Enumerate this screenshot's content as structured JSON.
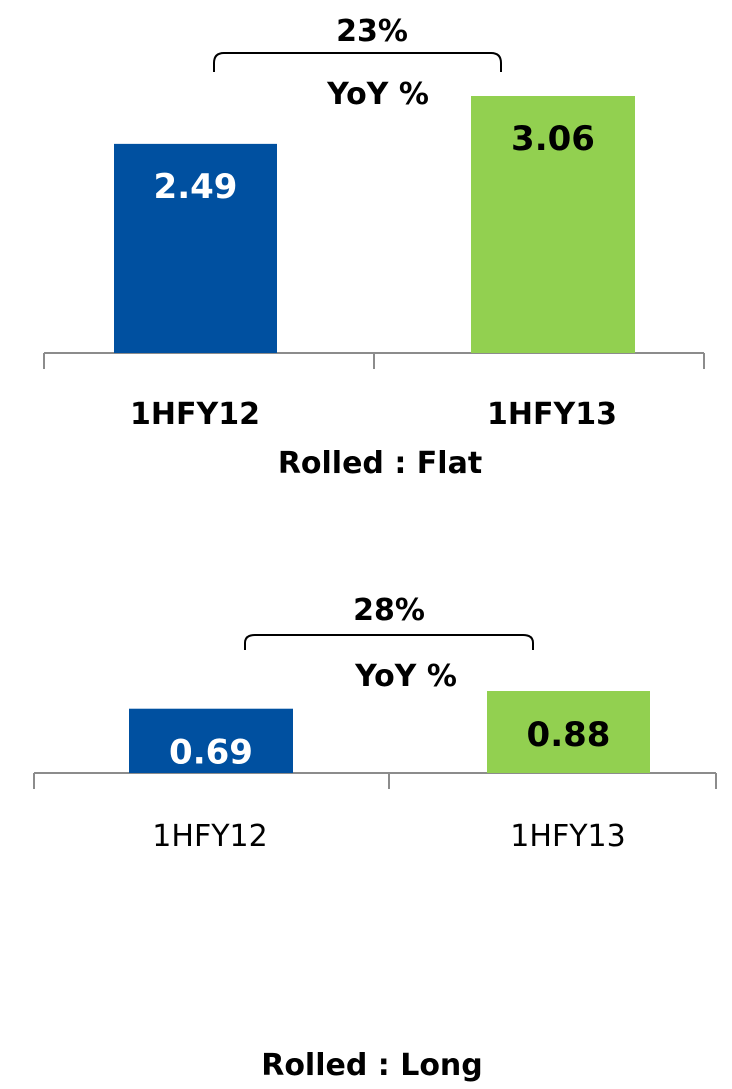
{
  "colors": {
    "series_1hfy12": "#0050a0",
    "series_1hfy13": "#92d050",
    "axis": "#8c8c8c"
  },
  "chart_data": [
    {
      "type": "bar",
      "title": "Rolled : Flat",
      "categories": [
        "1HFY12",
        "1HFY13"
      ],
      "values": [
        2.49,
        3.06
      ],
      "value_labels": [
        "2.49",
        "3.06"
      ],
      "growth_label": "23%",
      "growth_caption": "YoY %",
      "category_labels_bold": true,
      "ylim": [
        0,
        3.06
      ],
      "legend": "none",
      "grid": false
    },
    {
      "type": "bar",
      "title": "Rolled : Long",
      "categories": [
        "1HFY12",
        "1HFY13"
      ],
      "values": [
        0.69,
        0.88
      ],
      "value_labels": [
        "0.69",
        "0.88"
      ],
      "growth_label": "28%",
      "growth_caption": "YoY %",
      "category_labels_bold": false,
      "ylim": [
        0,
        0.88
      ],
      "legend": "none",
      "grid": false
    }
  ]
}
